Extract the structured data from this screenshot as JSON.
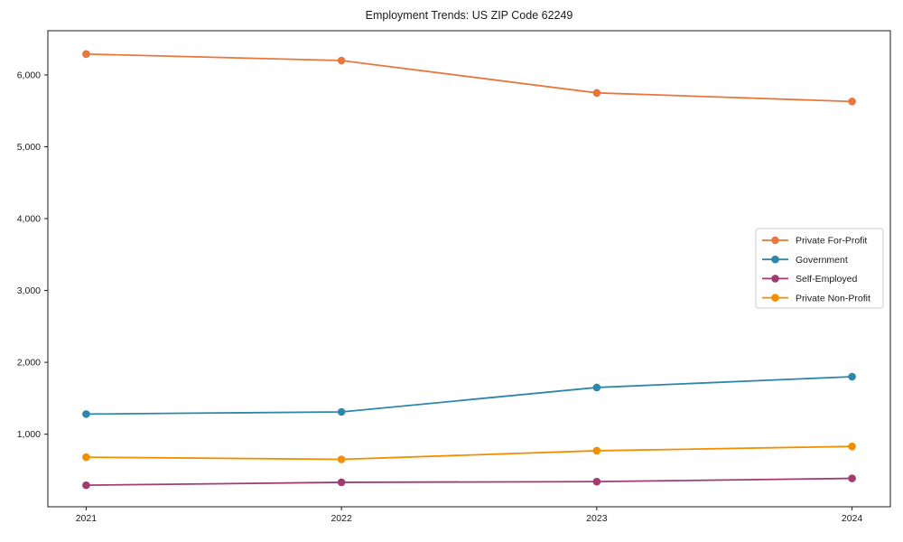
{
  "figure": {
    "background": "#ffffff",
    "text_color": "#1a1a1a",
    "legend_border_color": "#cccccc"
  },
  "chart_data": {
    "type": "line",
    "title": "Employment Trends: US ZIP Code 62249",
    "xlabel": "",
    "ylabel": "",
    "x": [
      2021,
      2022,
      2023,
      2024
    ],
    "x_tick_labels": [
      "2021",
      "2022",
      "2023",
      "2024"
    ],
    "xlim": [
      2020.85,
      2024.15
    ],
    "ylim": [
      -10,
      6615
    ],
    "y_ticks": [
      1000,
      2000,
      3000,
      4000,
      5000,
      6000
    ],
    "y_tick_labels": [
      "1,000",
      "2,000",
      "3,000",
      "4,000",
      "5,000",
      "6,000"
    ],
    "grid": false,
    "legend_position": "center-right",
    "marker": "circle",
    "series": [
      {
        "name": "Private For-Profit",
        "color": "#E8773D",
        "values": [
          6290,
          6200,
          5750,
          5630
        ]
      },
      {
        "name": "Government",
        "color": "#2E86AB",
        "values": [
          1280,
          1310,
          1650,
          1800
        ]
      },
      {
        "name": "Self-Employed",
        "color": "#A23B72",
        "values": [
          290,
          330,
          340,
          385
        ]
      },
      {
        "name": "Private Non-Profit",
        "color": "#F18F01",
        "values": [
          680,
          650,
          770,
          830
        ]
      }
    ]
  }
}
